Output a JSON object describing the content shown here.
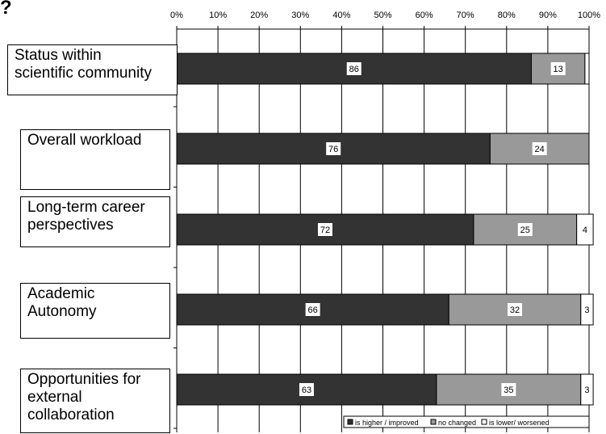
{
  "heading_fragment": "?",
  "chart_data": {
    "type": "bar",
    "orientation": "horizontal",
    "stacked": "percent",
    "categories": [
      "Status within\nscientific community",
      "Overall workload",
      "Long-term career\nperspectives",
      "Academic\nAutonomy",
      "Opportunities for\nexternal\ncollaboration"
    ],
    "series": [
      {
        "name": "is higher / improved",
        "color": "#333333",
        "values": [
          86,
          76,
          72,
          66,
          63
        ]
      },
      {
        "name": "no changed",
        "color": "#999999",
        "values": [
          13,
          24,
          25,
          32,
          35
        ]
      },
      {
        "name": "is lower/ worsened",
        "color": "#ffffff",
        "values": [
          1,
          0,
          4,
          3,
          3
        ]
      }
    ],
    "data_labels": [
      [
        "86",
        "13",
        ""
      ],
      [
        "76",
        "24",
        ""
      ],
      [
        "72",
        "25",
        "4"
      ],
      [
        "66",
        "32",
        "3"
      ],
      [
        "63",
        "35",
        "3"
      ]
    ],
    "xlim": [
      0,
      100
    ],
    "xticks": [
      "0%",
      "10%",
      "20%",
      "30%",
      "40%",
      "50%",
      "60%",
      "70%",
      "80%",
      "90%",
      "100%"
    ],
    "xaxis_position": "top",
    "grid": true,
    "legend_position": "bottom"
  }
}
